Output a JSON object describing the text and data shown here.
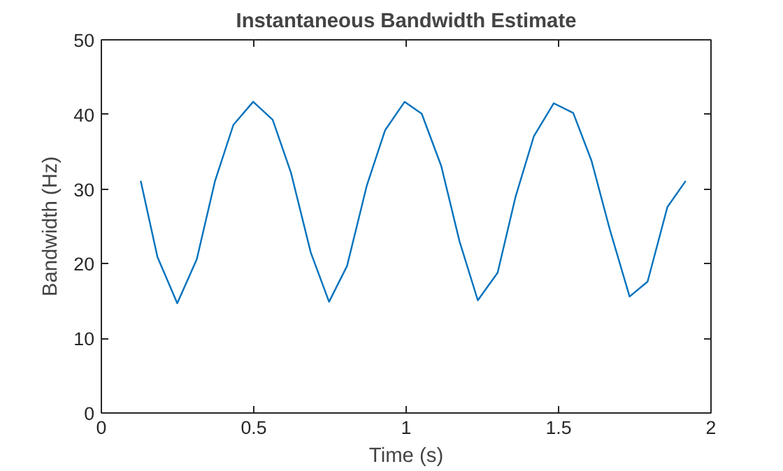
{
  "chart_data": {
    "type": "line",
    "title": "Instantaneous Bandwidth Estimate",
    "xlabel": "Time (s)",
    "ylabel": "Bandwidth (Hz)",
    "x": [
      0.129,
      0.184,
      0.249,
      0.313,
      0.373,
      0.433,
      0.498,
      0.562,
      0.622,
      0.687,
      0.747,
      0.806,
      0.871,
      0.931,
      0.995,
      1.051,
      1.115,
      1.175,
      1.235,
      1.3,
      1.359,
      1.419,
      1.484,
      1.548,
      1.608,
      1.668,
      1.733,
      1.792,
      1.857,
      1.917
    ],
    "series": [
      {
        "color": "#0072bd",
        "values": [
          31.1,
          20.9,
          14.7,
          20.6,
          31.1,
          38.6,
          41.7,
          39.3,
          32.2,
          21.5,
          14.9,
          19.7,
          30.5,
          37.9,
          41.7,
          40.1,
          33.1,
          23.0,
          15.1,
          18.8,
          29.0,
          37.1,
          41.5,
          40.2,
          33.8,
          24.6,
          15.6,
          17.6,
          27.6,
          31.1
        ]
      }
    ],
    "xlim": [
      0,
      2
    ],
    "ylim": [
      0,
      50
    ],
    "xticks": [
      0,
      0.5,
      1,
      1.5,
      2
    ],
    "yticks": [
      0,
      10,
      20,
      30,
      40,
      50
    ],
    "grid": false
  }
}
